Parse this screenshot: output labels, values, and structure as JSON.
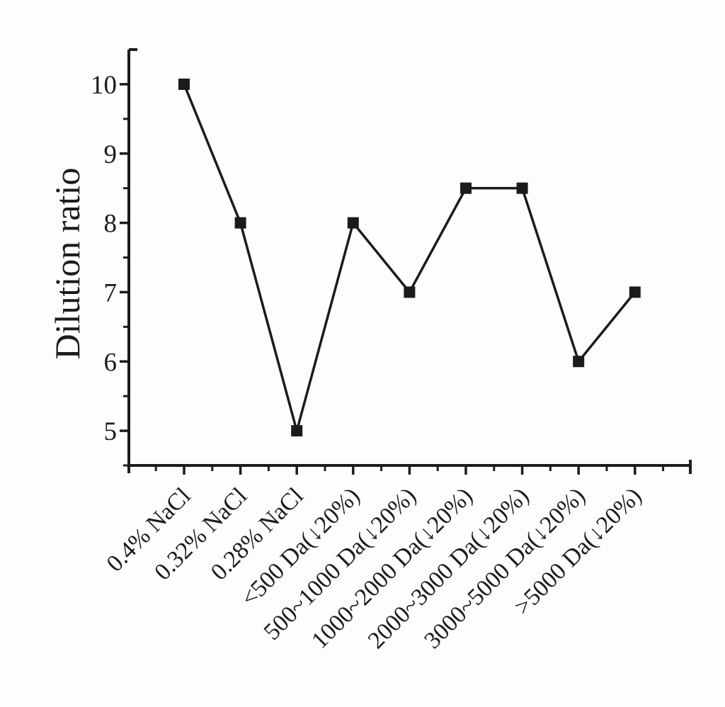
{
  "figure": {
    "background_color": "#fdfdfd",
    "ink_color": "#1b1b1b"
  },
  "chart_data": {
    "type": "line",
    "title": "",
    "xlabel": "",
    "ylabel": "Dilution ratio",
    "categories": [
      "0.4% NaCl",
      "0.32% NaCl",
      "0.28% NaCl",
      "<500 Da(↓20%)",
      "500~1000 Da(↓20%)",
      "1000~2000 Da(↓20%)",
      "2000~3000 Da(↓20%)",
      "3000~5000 Da(↓20%)",
      ">5000 Da(↓20%)"
    ],
    "values": [
      10,
      8,
      5,
      8,
      7,
      8.5,
      8.5,
      6,
      7
    ],
    "ylim": [
      4.5,
      10.5
    ],
    "yticks": [
      5,
      6,
      7,
      8,
      9,
      10
    ],
    "y_minor_tick_step": 0.5,
    "x_tick_label_rotation_deg": 45,
    "marker": "filled-square",
    "line_color": "#1b1b1b",
    "marker_color": "#1b1b1b",
    "grid": false,
    "legend_position": "none"
  }
}
